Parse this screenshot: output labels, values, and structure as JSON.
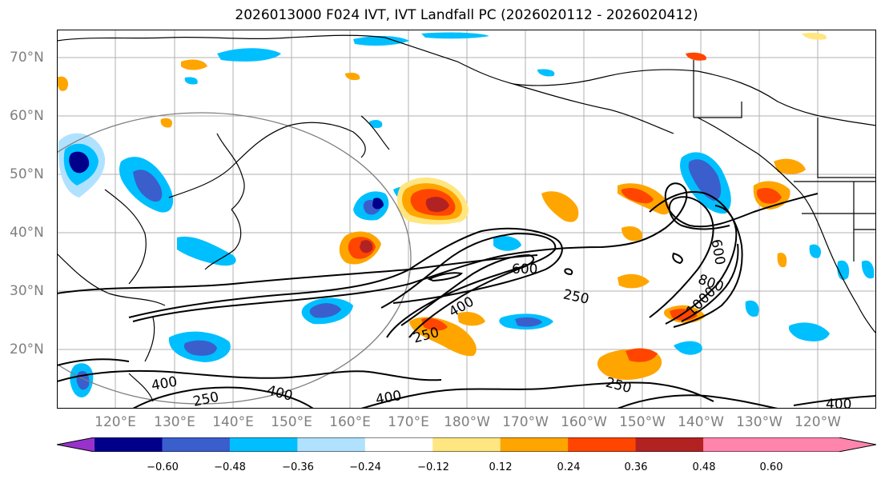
{
  "title": "2026013000 F024 IVT, IVT Landfall PC (2026020112 - 2026020412)",
  "lat_labels": [
    "70°N",
    "60°N",
    "50°N",
    "40°N",
    "30°N",
    "20°N"
  ],
  "lon_labels": [
    "120°E",
    "130°E",
    "140°E",
    "150°E",
    "160°E",
    "170°E",
    "180°W",
    "170°W",
    "160°W",
    "150°W",
    "140°W",
    "130°W",
    "120°W"
  ],
  "contour_labels": [
    "600",
    "250",
    "400",
    "250",
    "800",
    "600",
    "1000",
    "400",
    "250",
    "400",
    "250",
    "400",
    "250",
    "400"
  ],
  "colorbar": {
    "ticks": [
      "−0.60",
      "−0.48",
      "−0.36",
      "−0.24",
      "−0.12",
      "0.12",
      "0.24",
      "0.36",
      "0.48",
      "0.60"
    ],
    "colors": [
      "#9932cc",
      "#00008b",
      "#3a5fcd",
      "#00bfff",
      "#b0e2ff",
      "#ffffff",
      "#ffe680",
      "#ffa500",
      "#ff4500",
      "#b22222",
      "#ff85ad",
      "#ff85ad"
    ],
    "extend": "both"
  },
  "colors": {
    "label_gray": "#7f7f7f",
    "grid_gray": "#b0b0b0",
    "contour": "#000000"
  }
}
